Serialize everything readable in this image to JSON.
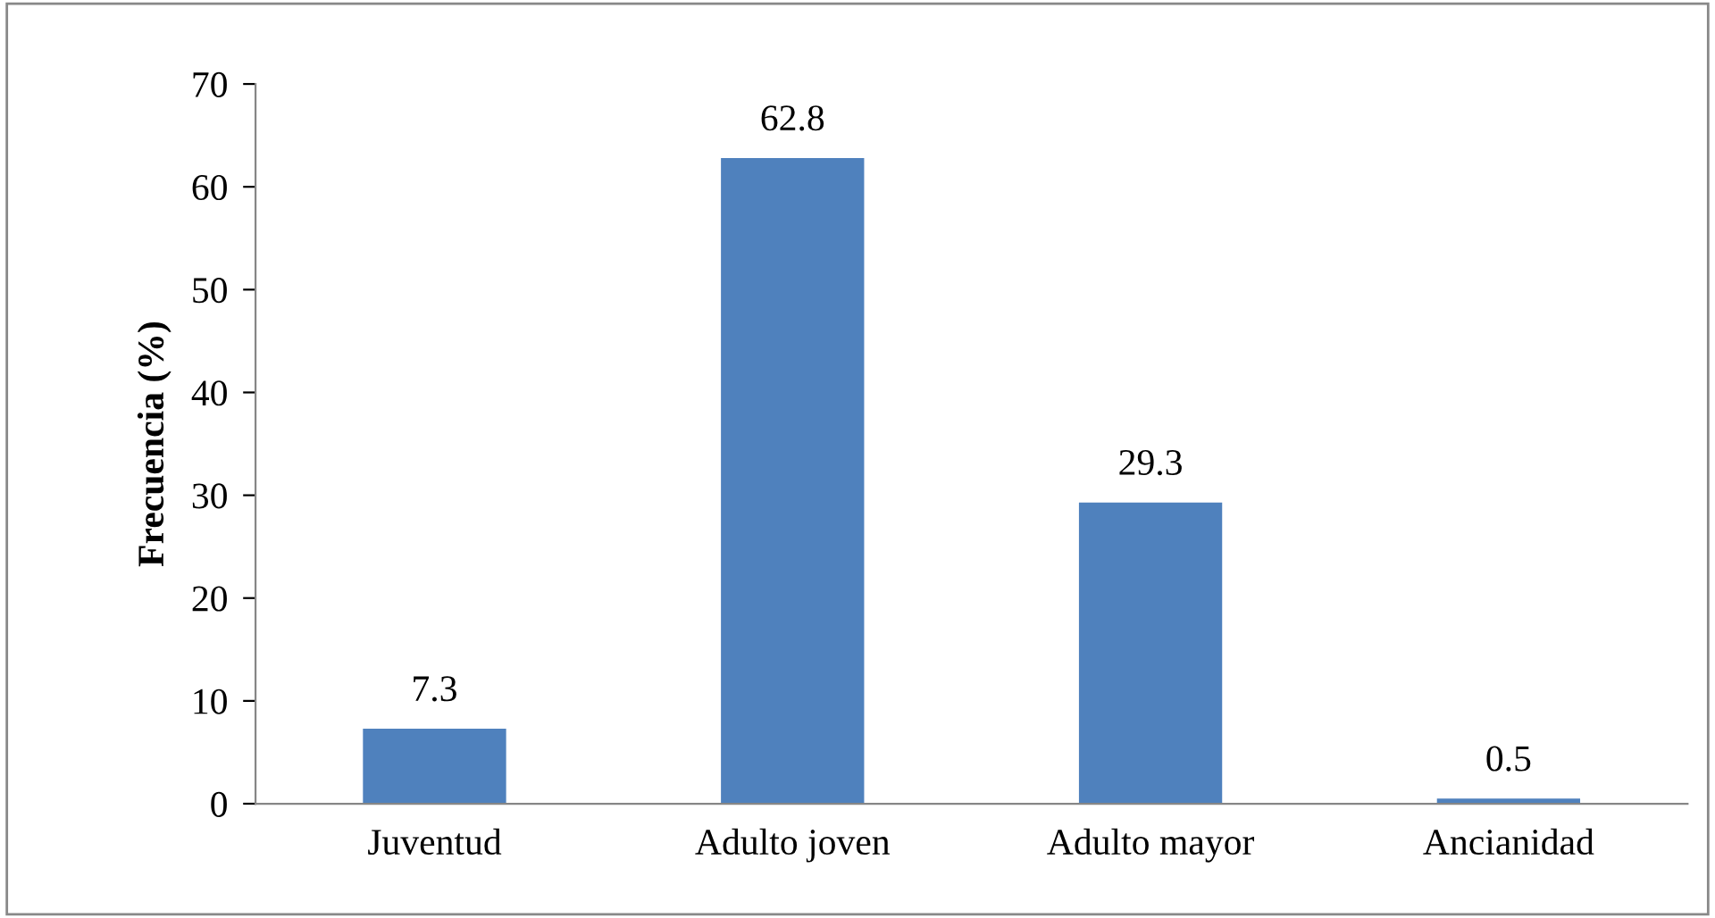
{
  "chart_data": {
    "type": "bar",
    "ylabel": "Frecuencia (%)",
    "categories": [
      "Juventud",
      "Adulto joven",
      "Adulto mayor",
      "Ancianidad"
    ],
    "values": [
      7.3,
      62.8,
      29.3,
      0.5
    ],
    "color": "#4f81bd",
    "ylim": [
      0,
      70
    ],
    "yticks": [
      0,
      10,
      20,
      30,
      40,
      50,
      60,
      70
    ],
    "grid": false,
    "data_labels": true
  }
}
